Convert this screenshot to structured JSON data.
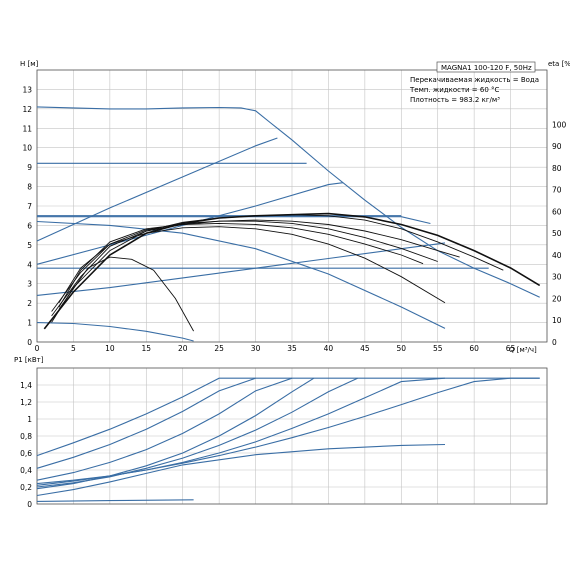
{
  "chart_data": [
    {
      "type": "line",
      "title": "MAGNA1 100-120 F, 50Hz",
      "annotations": [
        "Перекачиваемая жидкость = Вода",
        "Темп. жидкости = 60 °C",
        "Плотность = 983.2 кг/м³"
      ],
      "xlabel": "Q [м³/ч]",
      "ylabel": "H [м]",
      "ylabel2": "eta [%]",
      "xlim": [
        0,
        70
      ],
      "ylim": [
        0,
        14
      ],
      "ylim2": [
        0,
        125
      ],
      "xticks": [
        "0",
        "5",
        "10",
        "15",
        "20",
        "25",
        "30",
        "35",
        "40",
        "45",
        "50",
        "55",
        "60",
        "65"
      ],
      "yticks": [
        "0",
        "1",
        "2",
        "3",
        "4",
        "5",
        "6",
        "7",
        "8",
        "9",
        "10",
        "11",
        "12",
        "13"
      ],
      "yticks2": [
        "0",
        "10",
        "20",
        "30",
        "40",
        "50",
        "60",
        "70",
        "80",
        "90",
        "100"
      ],
      "grid": true,
      "colors": {
        "head": "#3a6ea5",
        "eta": "#111111",
        "grid": "#c4c4c4"
      },
      "head_series": [
        {
          "x": [
            0,
            5,
            10,
            15,
            20,
            25,
            28,
            30,
            32,
            35,
            40,
            45,
            50,
            55,
            60,
            65,
            69
          ],
          "y": [
            12.1,
            12.05,
            12.0,
            12.0,
            12.05,
            12.07,
            12.05,
            11.9,
            11.3,
            10.4,
            8.8,
            7.3,
            5.9,
            4.7,
            3.8,
            3.0,
            2.3
          ]
        },
        {
          "x": [
            0,
            10,
            20,
            30,
            33
          ],
          "y": [
            5.2,
            6.9,
            8.5,
            10.1,
            10.5
          ]
        },
        {
          "x": [
            0,
            10,
            20,
            30,
            40,
            42
          ],
          "y": [
            4.0,
            5.0,
            6.0,
            7.0,
            8.1,
            8.2
          ]
        },
        {
          "x": [
            0,
            10,
            20,
            30,
            40,
            50,
            56
          ],
          "y": [
            2.4,
            2.8,
            3.3,
            3.8,
            4.3,
            4.8,
            5.1
          ]
        },
        {
          "x": [
            0,
            30,
            37
          ],
          "y": [
            9.2,
            9.2,
            9.2
          ]
        },
        {
          "x": [
            0,
            50
          ],
          "y": [
            6.5,
            6.5
          ]
        },
        {
          "x": [
            0,
            50,
            54
          ],
          "y": [
            6.45,
            6.45,
            6.1
          ]
        },
        {
          "x": [
            0,
            62
          ],
          "y": [
            3.8,
            3.8
          ]
        },
        {
          "x": [
            0,
            10,
            20,
            30,
            40,
            50,
            56
          ],
          "y": [
            6.2,
            6.0,
            5.6,
            4.8,
            3.5,
            1.8,
            0.7
          ]
        },
        {
          "x": [
            0,
            5,
            10,
            15,
            20,
            21.5
          ],
          "y": [
            1.0,
            0.95,
            0.8,
            0.55,
            0.2,
            0.05
          ]
        }
      ],
      "eta_series": [
        {
          "x": [
            1,
            5,
            10,
            15,
            20,
            25,
            30,
            35,
            40,
            45,
            50,
            55,
            60,
            65,
            69
          ],
          "y": [
            6,
            23,
            40,
            50,
            54.5,
            57,
            58,
            58.5,
            59,
            57.5,
            54,
            49,
            42,
            34,
            26
          ]
        },
        {
          "x": [
            2,
            5,
            10,
            15,
            20,
            25,
            30,
            35,
            40,
            45,
            50,
            55,
            60,
            64
          ],
          "y": [
            9,
            25,
            42,
            51,
            55,
            57,
            58,
            58.5,
            58,
            56,
            52,
            46,
            39,
            33
          ]
        },
        {
          "x": [
            2,
            6,
            10,
            15,
            20,
            25,
            30,
            35,
            40,
            45,
            50,
            55,
            58
          ],
          "y": [
            12,
            30,
            44,
            51,
            54,
            55.5,
            56,
            55.5,
            54,
            51,
            47,
            42,
            39
          ]
        },
        {
          "x": [
            2,
            6,
            10,
            15,
            20,
            25,
            30,
            35,
            40,
            45,
            50,
            55
          ],
          "y": [
            14,
            32,
            45,
            51.5,
            54.5,
            55.5,
            55.5,
            54.5,
            52,
            48,
            43,
            37
          ]
        },
        {
          "x": [
            3,
            6,
            10,
            15,
            20,
            25,
            30,
            35,
            40,
            45,
            50,
            53
          ],
          "y": [
            16,
            33,
            46,
            52,
            54,
            54.5,
            54,
            52.5,
            49.5,
            45,
            40,
            36
          ]
        },
        {
          "x": [
            3,
            6,
            10,
            15,
            20,
            25,
            30,
            35,
            40,
            45,
            50,
            56
          ],
          "y": [
            18,
            34,
            45,
            50,
            52.5,
            53,
            52,
            49.5,
            45,
            38.5,
            30,
            18
          ]
        },
        {
          "x": [
            3,
            7,
            10,
            13,
            16,
            19,
            21.5
          ],
          "y": [
            15,
            34,
            39,
            38,
            33,
            20,
            5
          ]
        }
      ]
    },
    {
      "type": "line",
      "ylabel": "P1 [кВт]",
      "xlim": [
        0,
        70
      ],
      "ylim": [
        0,
        1.6
      ],
      "yticks": [
        "0",
        "0,2",
        "0,4",
        "0,6",
        "0,8",
        "1",
        "1,2",
        "1,4"
      ],
      "grid": true,
      "power_series": [
        {
          "x": [
            0,
            5,
            10,
            15,
            20,
            25,
            30,
            35,
            40,
            45,
            50,
            55,
            60,
            65,
            69
          ],
          "y": [
            0.24,
            0.28,
            0.33,
            0.4,
            0.48,
            0.57,
            0.67,
            0.78,
            0.9,
            1.03,
            1.17,
            1.31,
            1.44,
            1.48,
            1.48
          ]
        },
        {
          "x": [
            0,
            5,
            10,
            15,
            20,
            25,
            30,
            35,
            40,
            45,
            50,
            56
          ],
          "y": [
            0.22,
            0.27,
            0.33,
            0.4,
            0.49,
            0.6,
            0.73,
            0.89,
            1.06,
            1.25,
            1.44,
            1.48
          ]
        },
        {
          "x": [
            0,
            5,
            10,
            15,
            20,
            25,
            30,
            35,
            40,
            44
          ],
          "y": [
            0.2,
            0.25,
            0.32,
            0.42,
            0.54,
            0.69,
            0.87,
            1.08,
            1.32,
            1.48
          ]
        },
        {
          "x": [
            0,
            5,
            10,
            15,
            20,
            25,
            30,
            35,
            38
          ],
          "y": [
            0.18,
            0.24,
            0.33,
            0.45,
            0.6,
            0.8,
            1.04,
            1.32,
            1.48
          ]
        },
        {
          "x": [
            0,
            5,
            10,
            15,
            20,
            25,
            30,
            35
          ],
          "y": [
            0.28,
            0.37,
            0.49,
            0.64,
            0.83,
            1.06,
            1.33,
            1.48
          ]
        },
        {
          "x": [
            0,
            5,
            10,
            15,
            20,
            25,
            30
          ],
          "y": [
            0.42,
            0.55,
            0.7,
            0.88,
            1.09,
            1.33,
            1.48
          ]
        },
        {
          "x": [
            0,
            5,
            10,
            15,
            20,
            25,
            30
          ],
          "y": [
            0.57,
            0.72,
            0.88,
            1.06,
            1.26,
            1.48,
            1.48
          ]
        },
        {
          "x": [
            0,
            5,
            10,
            15,
            20,
            30,
            40,
            50,
            56
          ],
          "y": [
            0.1,
            0.17,
            0.26,
            0.36,
            0.46,
            0.58,
            0.65,
            0.69,
            0.7
          ]
        },
        {
          "x": [
            0,
            10,
            21.5
          ],
          "y": [
            0.03,
            0.04,
            0.05
          ]
        },
        {
          "x": [
            30,
            69
          ],
          "y": [
            1.48,
            1.48
          ]
        }
      ]
    }
  ]
}
